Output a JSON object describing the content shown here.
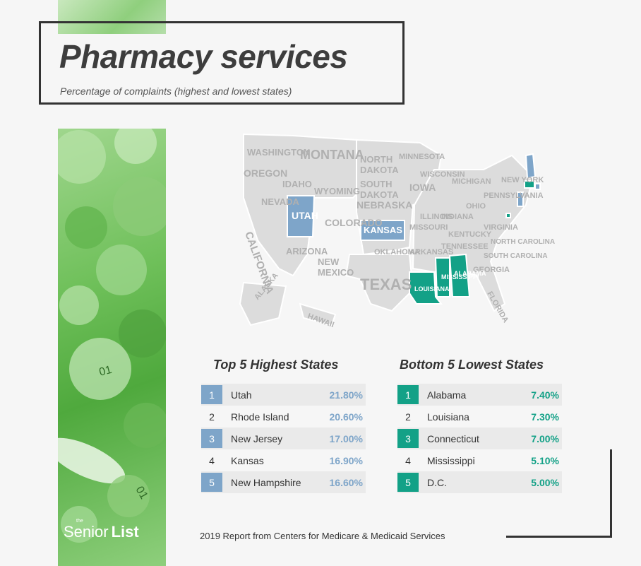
{
  "header": {
    "title": "Pharmacy services",
    "subtitle": "Percentage of complaints (highest and lowest states)"
  },
  "colors": {
    "highest_accent": "#7ea5c9",
    "lowest_accent": "#13a187",
    "map_gray": "#d9d9d9",
    "strip_green": "#6fc05a"
  },
  "map": {
    "highest_states": [
      "UTAH",
      "KANSAS",
      "NEW JERSEY",
      "RHODE ISLAND",
      "NEW HAMPSHIRE"
    ],
    "lowest_states": [
      "ALABAMA",
      "LOUISIANA",
      "CONNECTICUT",
      "MISSISSIPPI",
      "D.C."
    ],
    "labels": [
      "WASHINGTON",
      "MONTANA",
      "NORTH DAKOTA",
      "MINNESOTA",
      "OREGON",
      "IDAHO",
      "WYOMING",
      "SOUTH DAKOTA",
      "WISCONSIN",
      "MICHIGAN",
      "NEW YORK",
      "CALIFORNIA",
      "NEVADA",
      "UTAH",
      "COLORADO",
      "NEBRASKA",
      "IOWA",
      "ILLINOIS",
      "INDIANA",
      "OHIO",
      "PENNSYLVANIA",
      "KANSAS",
      "MISSOURI",
      "KENTUCKY",
      "VIRGINIA",
      "ARIZONA",
      "NEW MEXICO",
      "OKLAHOMA",
      "ARKANSAS",
      "TENNESSEE",
      "NORTH CAROLINA",
      "SOUTH CAROLINA",
      "TEXAS",
      "GEORGIA",
      "ALABAMA",
      "MISSISSIPPI",
      "LOUISIANA",
      "FLORIDA",
      "ALASKA",
      "HAWAII"
    ]
  },
  "highest": {
    "title": "Top 5 Highest States",
    "rows": [
      {
        "rank": "1",
        "state": "Utah",
        "value": "21.80%"
      },
      {
        "rank": "2",
        "state": "Rhode Island",
        "value": "20.60%"
      },
      {
        "rank": "3",
        "state": "New Jersey",
        "value": "17.00%"
      },
      {
        "rank": "4",
        "state": "Kansas",
        "value": "16.90%"
      },
      {
        "rank": "5",
        "state": "New Hampshire",
        "value": "16.60%"
      }
    ]
  },
  "lowest": {
    "title": "Bottom 5 Lowest States",
    "rows": [
      {
        "rank": "1",
        "state": "Alabama",
        "value": "7.40%"
      },
      {
        "rank": "2",
        "state": "Louisiana",
        "value": "7.30%"
      },
      {
        "rank": "3",
        "state": "Connecticut",
        "value": "7.00%"
      },
      {
        "rank": "4",
        "state": "Mississippi",
        "value": "5.10%"
      },
      {
        "rank": "5",
        "state": "D.C.",
        "value": "5.00%"
      }
    ]
  },
  "footer": {
    "source": "2019 Report from Centers for Medicare & Medicaid Services"
  },
  "logo": {
    "prefix": "the",
    "name_light": "Senior",
    "name_bold": "List"
  }
}
